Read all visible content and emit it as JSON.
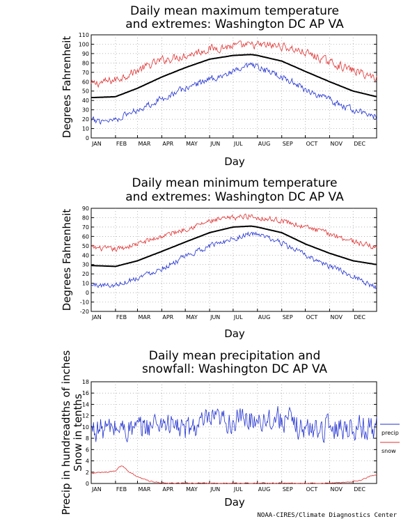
{
  "chart_data": [
    {
      "type": "line",
      "title": [
        "Daily mean maximum temperature",
        "and extremes: Washington DC AP VA"
      ],
      "xlabel": "Day",
      "ylabel": "Degrees Fahrenheit",
      "ylim": [
        0,
        110
      ],
      "yticks": [
        0,
        10,
        20,
        30,
        40,
        50,
        60,
        70,
        80,
        90,
        100,
        110
      ],
      "months": [
        "JAN",
        "FEB",
        "MAR",
        "APR",
        "MAY",
        "JUN",
        "JUL",
        "AUG",
        "SEP",
        "OCT",
        "NOV",
        "DEC"
      ],
      "grid": true,
      "series": [
        {
          "role": "upper",
          "color": "#e03030",
          "anchors": [
            [
              1,
              57
            ],
            [
              32,
              62
            ],
            [
              60,
              72
            ],
            [
              91,
              83
            ],
            [
              121,
              88
            ],
            [
              152,
              95
            ],
            [
              182,
              98
            ],
            [
              213,
              99
            ],
            [
              244,
              98
            ],
            [
              274,
              91
            ],
            [
              305,
              81
            ],
            [
              335,
              72
            ],
            [
              365,
              64
            ]
          ],
          "noise": 6
        },
        {
          "role": "mean",
          "color": "#000000",
          "anchors": [
            [
              1,
              43
            ],
            [
              32,
              44
            ],
            [
              60,
              53
            ],
            [
              91,
              65
            ],
            [
              121,
              75
            ],
            [
              152,
              84
            ],
            [
              182,
              88
            ],
            [
              205,
              89
            ],
            [
              213,
              88
            ],
            [
              244,
              82
            ],
            [
              274,
              71
            ],
            [
              305,
              60
            ],
            [
              335,
              50
            ],
            [
              365,
              44
            ]
          ],
          "noise": 0.4
        },
        {
          "role": "lower",
          "color": "#2030d0",
          "anchors": [
            [
              1,
              18
            ],
            [
              32,
              20
            ],
            [
              60,
              30
            ],
            [
              91,
              42
            ],
            [
              121,
              53
            ],
            [
              152,
              63
            ],
            [
              182,
              70
            ],
            [
              205,
              77
            ],
            [
              213,
              75
            ],
            [
              244,
              66
            ],
            [
              274,
              52
            ],
            [
              305,
              40
            ],
            [
              335,
              30
            ],
            [
              365,
              22
            ]
          ],
          "noise": 5
        }
      ]
    },
    {
      "type": "line",
      "title": [
        "Daily mean minimum temperature",
        "and extremes: Washington DC AP VA"
      ],
      "xlabel": "Day",
      "ylabel": "Degrees Fahrenheit",
      "ylim": [
        -20,
        90
      ],
      "yticks": [
        -20,
        -10,
        0,
        10,
        20,
        30,
        40,
        50,
        60,
        70,
        80,
        90
      ],
      "months": [
        "JAN",
        "FEB",
        "MAR",
        "APR",
        "MAY",
        "JUN",
        "JUL",
        "AUG",
        "SEP",
        "OCT",
        "NOV",
        "DEC"
      ],
      "grid": true,
      "series": [
        {
          "role": "upper",
          "color": "#e03030",
          "anchors": [
            [
              1,
              48
            ],
            [
              32,
              46
            ],
            [
              60,
              52
            ],
            [
              91,
              60
            ],
            [
              121,
              68
            ],
            [
              152,
              76
            ],
            [
              182,
              80
            ],
            [
              205,
              82
            ],
            [
              213,
              80
            ],
            [
              244,
              77
            ],
            [
              274,
              70
            ],
            [
              305,
              63
            ],
            [
              335,
              55
            ],
            [
              365,
              48
            ]
          ],
          "noise": 4
        },
        {
          "role": "mean",
          "color": "#000000",
          "anchors": [
            [
              1,
              29
            ],
            [
              32,
              28
            ],
            [
              60,
              34
            ],
            [
              91,
              44
            ],
            [
              121,
              54
            ],
            [
              152,
              64
            ],
            [
              182,
              70
            ],
            [
              205,
              71
            ],
            [
              213,
              70
            ],
            [
              244,
              64
            ],
            [
              274,
              52
            ],
            [
              305,
              42
            ],
            [
              335,
              34
            ],
            [
              365,
              30
            ]
          ],
          "noise": 0.3
        },
        {
          "role": "lower",
          "color": "#2030d0",
          "anchors": [
            [
              1,
              8
            ],
            [
              32,
              8
            ],
            [
              60,
              16
            ],
            [
              91,
              26
            ],
            [
              121,
              38
            ],
            [
              152,
              50
            ],
            [
              182,
              58
            ],
            [
              205,
              63
            ],
            [
              213,
              62
            ],
            [
              244,
              53
            ],
            [
              274,
              40
            ],
            [
              305,
              28
            ],
            [
              335,
              18
            ],
            [
              365,
              5
            ]
          ],
          "noise": 4
        }
      ]
    },
    {
      "type": "line",
      "title": [
        "Daily mean precipitation and",
        "snowfall: Washington DC AP VA"
      ],
      "xlabel": "Day",
      "ylabel": [
        "Precip in hundreadths of inches",
        "Snow in tenths"
      ],
      "ylim": [
        0,
        18
      ],
      "yticks": [
        0,
        2,
        4,
        6,
        8,
        10,
        12,
        14,
        16,
        18
      ],
      "months": [
        "JAN",
        "FEB",
        "MAR",
        "APR",
        "MAY",
        "JUN",
        "JUL",
        "AUG",
        "SEP",
        "OCT",
        "NOV",
        "DEC"
      ],
      "grid": true,
      "legend": {
        "placement": "right",
        "entries": [
          {
            "label": "precip",
            "color": "#2030d0"
          },
          {
            "label": "snow",
            "color": "#e03030"
          }
        ]
      },
      "series": [
        {
          "name": "precip",
          "color": "#2030d0",
          "anchors": [
            [
              1,
              9.5
            ],
            [
              32,
              9.8
            ],
            [
              60,
              9.5
            ],
            [
              91,
              11
            ],
            [
              121,
              9.5
            ],
            [
              152,
              11
            ],
            [
              182,
              11
            ],
            [
              213,
              11.5
            ],
            [
              244,
              11.5
            ],
            [
              274,
              9.5
            ],
            [
              305,
              10
            ],
            [
              335,
              10
            ],
            [
              365,
              9.8
            ]
          ],
          "noise": 3
        },
        {
          "name": "snow",
          "color": "#e03030",
          "anchors": [
            [
              1,
              1.8
            ],
            [
              20,
              2.0
            ],
            [
              32,
              2.3
            ],
            [
              40,
              3.2
            ],
            [
              50,
              2.0
            ],
            [
              60,
              1.2
            ],
            [
              75,
              0.4
            ],
            [
              90,
              0.1
            ],
            [
              100,
              0.05
            ],
            [
              300,
              0.05
            ],
            [
              310,
              0.1
            ],
            [
              330,
              0.2
            ],
            [
              345,
              0.6
            ],
            [
              355,
              1.2
            ],
            [
              365,
              1.5
            ]
          ],
          "noise": 0.15
        }
      ]
    }
  ],
  "credit": "NOAA-CIRES/Climate Diagnostics Center"
}
